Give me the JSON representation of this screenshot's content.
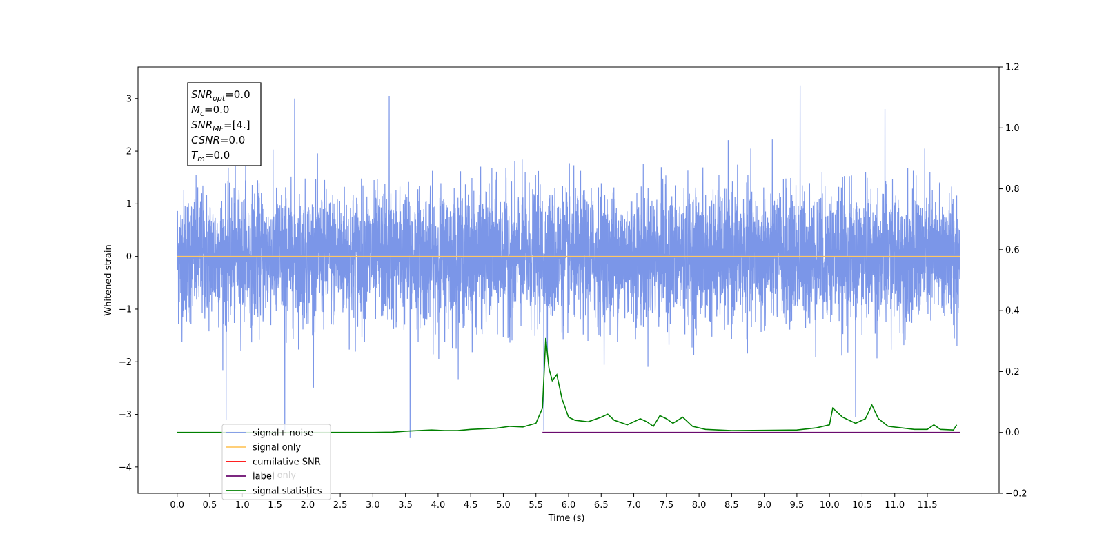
{
  "chart_data": {
    "type": "line",
    "xlabel": "Time (s)",
    "ylabel": "Whitened strain",
    "xlim": [
      -0.6,
      12.6
    ],
    "ylim": [
      -4.5,
      3.6
    ],
    "y2lim": [
      -0.2,
      1.2
    ],
    "grid": false,
    "legend_placement": "lower-left",
    "x_ticks": [
      "0.0",
      "0.5",
      "1.0",
      "1.5",
      "2.0",
      "2.5",
      "3.0",
      "3.5",
      "4.0",
      "4.5",
      "5.0",
      "5.5",
      "6.0",
      "6.5",
      "7.0",
      "7.5",
      "8.0",
      "8.5",
      "9.0",
      "9.5",
      "10.0",
      "10.5",
      "11.0",
      "11.5"
    ],
    "y_ticks": [
      "3",
      "2",
      "1",
      "0",
      "−1",
      "−2",
      "−3",
      "−4"
    ],
    "y_tick_values": [
      3,
      2,
      1,
      0,
      -1,
      -2,
      -3,
      -4
    ],
    "y2_ticks": [
      "1.2",
      "1.0",
      "0.8",
      "0.6",
      "0.4",
      "0.2",
      "0.0",
      "−0.2"
    ],
    "y2_tick_values": [
      1.2,
      1.0,
      0.8,
      0.6,
      0.4,
      0.2,
      0.0,
      -0.2
    ],
    "annotation": {
      "lines": [
        {
          "sym": "SNR",
          "sub": "opt",
          "value": "=0.0"
        },
        {
          "sym": "M",
          "sub": "c",
          "value": "=0.0"
        },
        {
          "sym": "SNR",
          "sub": "MF",
          "value": "=[4.]"
        },
        {
          "sym": "CSNR",
          "sub": "",
          "value": "=0.0"
        },
        {
          "sym": "T",
          "sub": "m",
          "value": "=0.0"
        }
      ]
    },
    "legend": [
      {
        "label": "signal+ noise",
        "color": "#7b96e8"
      },
      {
        "label": "signal only",
        "color": "#ffc864"
      },
      {
        "label": "cumilative SNR",
        "color": "#ff0000"
      },
      {
        "label": "label",
        "color": "#6a0a6e"
      },
      {
        "label": "signal statistics",
        "color": "#008000"
      }
    ],
    "hidden_legend_label": "label only",
    "series": [
      {
        "name": "signal+ noise",
        "axis": "left",
        "color": "#7b96e8",
        "x_range": [
          0.0,
          12.0
        ],
        "envelope_typical": [
          -1.3,
          1.3
        ],
        "spikes": [
          {
            "x": 0.75,
            "y": -3.1
          },
          {
            "x": 1.05,
            "y": 2.7
          },
          {
            "x": 1.65,
            "y": -3.3
          },
          {
            "x": 1.8,
            "y": 3.0
          },
          {
            "x": 3.25,
            "y": 3.05
          },
          {
            "x": 3.57,
            "y": -3.45
          },
          {
            "x": 5.62,
            "y": -3.3
          },
          {
            "x": 9.55,
            "y": 3.25
          },
          {
            "x": 10.4,
            "y": -3.05
          },
          {
            "x": 10.85,
            "y": 2.8
          }
        ]
      },
      {
        "name": "signal only",
        "axis": "left",
        "color": "#ffc864",
        "x": [
          0.0,
          12.0
        ],
        "y": [
          0.0,
          0.0
        ]
      },
      {
        "name": "label",
        "axis": "right",
        "color": "#6a0a6e",
        "x": [
          5.6,
          12.0
        ],
        "y": [
          0.0,
          0.0
        ]
      },
      {
        "name": "signal statistics",
        "axis": "right",
        "color": "#008000",
        "x": [
          0.0,
          3.0,
          3.3,
          3.5,
          3.7,
          3.9,
          4.1,
          4.3,
          4.5,
          4.7,
          4.9,
          5.1,
          5.3,
          5.5,
          5.6,
          5.65,
          5.7,
          5.75,
          5.82,
          5.9,
          6.0,
          6.1,
          6.3,
          6.5,
          6.6,
          6.7,
          6.9,
          7.1,
          7.2,
          7.3,
          7.4,
          7.5,
          7.6,
          7.75,
          7.9,
          8.1,
          8.5,
          9.0,
          9.5,
          9.8,
          10.0,
          10.05,
          10.2,
          10.4,
          10.55,
          10.65,
          10.75,
          10.9,
          11.1,
          11.3,
          11.5,
          11.6,
          11.7,
          11.9,
          11.95
        ],
        "y": [
          0.0,
          0.0,
          0.001,
          0.004,
          0.006,
          0.008,
          0.006,
          0.006,
          0.01,
          0.012,
          0.014,
          0.02,
          0.018,
          0.03,
          0.08,
          0.31,
          0.21,
          0.17,
          0.19,
          0.11,
          0.05,
          0.04,
          0.035,
          0.05,
          0.06,
          0.04,
          0.025,
          0.045,
          0.035,
          0.02,
          0.055,
          0.045,
          0.03,
          0.05,
          0.02,
          0.01,
          0.006,
          0.007,
          0.008,
          0.015,
          0.025,
          0.08,
          0.05,
          0.03,
          0.045,
          0.09,
          0.045,
          0.02,
          0.015,
          0.01,
          0.01,
          0.025,
          0.01,
          0.008,
          0.025
        ]
      }
    ]
  }
}
